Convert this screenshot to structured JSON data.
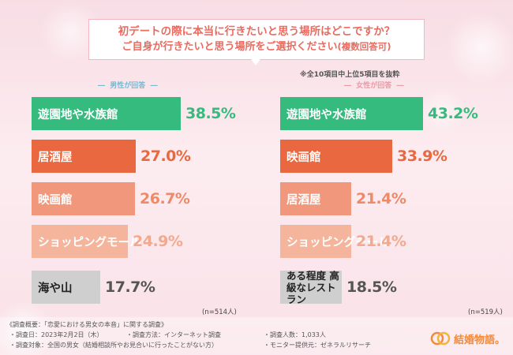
{
  "title": {
    "line1": "初デートの際に本当に行きたいと思う場所はどこですか？",
    "line2": "ご自身が行きたいと思う場所をご選択ください",
    "line2_note": "(複数回答可)"
  },
  "note": "※全10項目中上位5項目を抜粋",
  "chart_data": [
    {
      "type": "bar",
      "title": "男性が回答",
      "categories": [
        "遊園地や水族館",
        "居酒屋",
        "映画館",
        "ショッピングモール",
        "海や山"
      ],
      "values": [
        38.5,
        27.0,
        26.7,
        24.9,
        17.7
      ],
      "value_labels": [
        "38.5%",
        "27.0%",
        "26.7%",
        "24.9%",
        "17.7%"
      ],
      "xlim": [
        0,
        50
      ],
      "n": "(n=514人)"
    },
    {
      "type": "bar",
      "title": "女性が回答",
      "categories": [
        "遊園地や水族館",
        "映画館",
        "居酒屋",
        "ショッピングモール",
        "ある程度 高級なレストラン"
      ],
      "values": [
        43.2,
        33.9,
        21.4,
        21.4,
        18.5
      ],
      "value_labels": [
        "43.2%",
        "33.9%",
        "21.4%",
        "21.4%",
        "18.5%"
      ],
      "xlim": [
        0,
        50
      ],
      "n": "(n=519人)"
    }
  ],
  "colors": {
    "green": "#35bb7e",
    "orange": "#e9683f",
    "salmon": "#f1987c",
    "peach": "#f5b59d",
    "gray": "#cfcfcf",
    "value_dark": "#e9683f",
    "value_mid": "#ef8a67",
    "value_light": "#f2a98e",
    "value_gray": "#555555"
  },
  "footer": {
    "heading": "《調査概要：「恋愛における男女の本音」に関する調査》",
    "date": "・調査日：2023年2月2日（木）",
    "method": "・調査方法：インターネット調査",
    "count": "・調査人数：1,033人",
    "target": "・調査対象：全国の男女（結婚相談所やお見合いに行ったことがない方）",
    "provider": "・モニター提供元：ゼネラルリサーチ"
  },
  "logo": {
    "text": "結婚物語。",
    "icon": "heart-rings-icon"
  }
}
